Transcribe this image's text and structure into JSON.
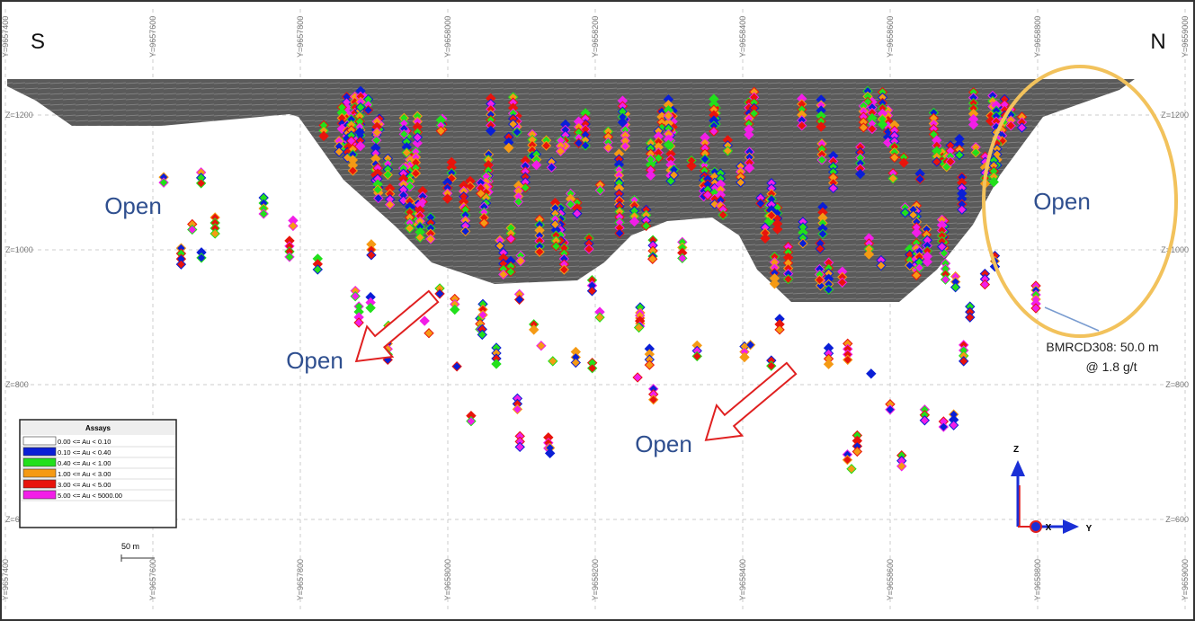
{
  "directions": {
    "left": "S",
    "right": "N"
  },
  "y_axis_labels": [
    "Y=9657400",
    "Y=9657600",
    "Y=9657800",
    "Y=9658000",
    "Y=9658200",
    "Y=9658400",
    "Y=9658600",
    "Y=9658800",
    "Y=9659000"
  ],
  "z_axis_labels": [
    "Z=1200",
    "Z=1000",
    "Z=800",
    "Z=600"
  ],
  "open_labels": [
    "Open",
    "Open",
    "Open",
    "Open"
  ],
  "annotation": {
    "lines": [
      "BMRCD308: 50.0 m",
      "@ 1.8 g/t"
    ]
  },
  "legend": {
    "title": "Assays",
    "items": [
      {
        "label": "0.00 <= Au < 0.10",
        "color": "#ffffff"
      },
      {
        "label": "0.10 <= Au < 0.40",
        "color": "#0a1fd6"
      },
      {
        "label": "0.40 <= Au < 1.00",
        "color": "#22e01c"
      },
      {
        "label": "1.00 <= Au < 3.00",
        "color": "#f59a14"
      },
      {
        "label": "3.00 <= Au < 5.00",
        "color": "#e8140c"
      },
      {
        "label": "5.00 <= Au < 5000.00",
        "color": "#f21ee8"
      }
    ]
  },
  "scale_bar": "50 m",
  "triad": {
    "z": "Z",
    "x": "X",
    "y": "Y"
  }
}
